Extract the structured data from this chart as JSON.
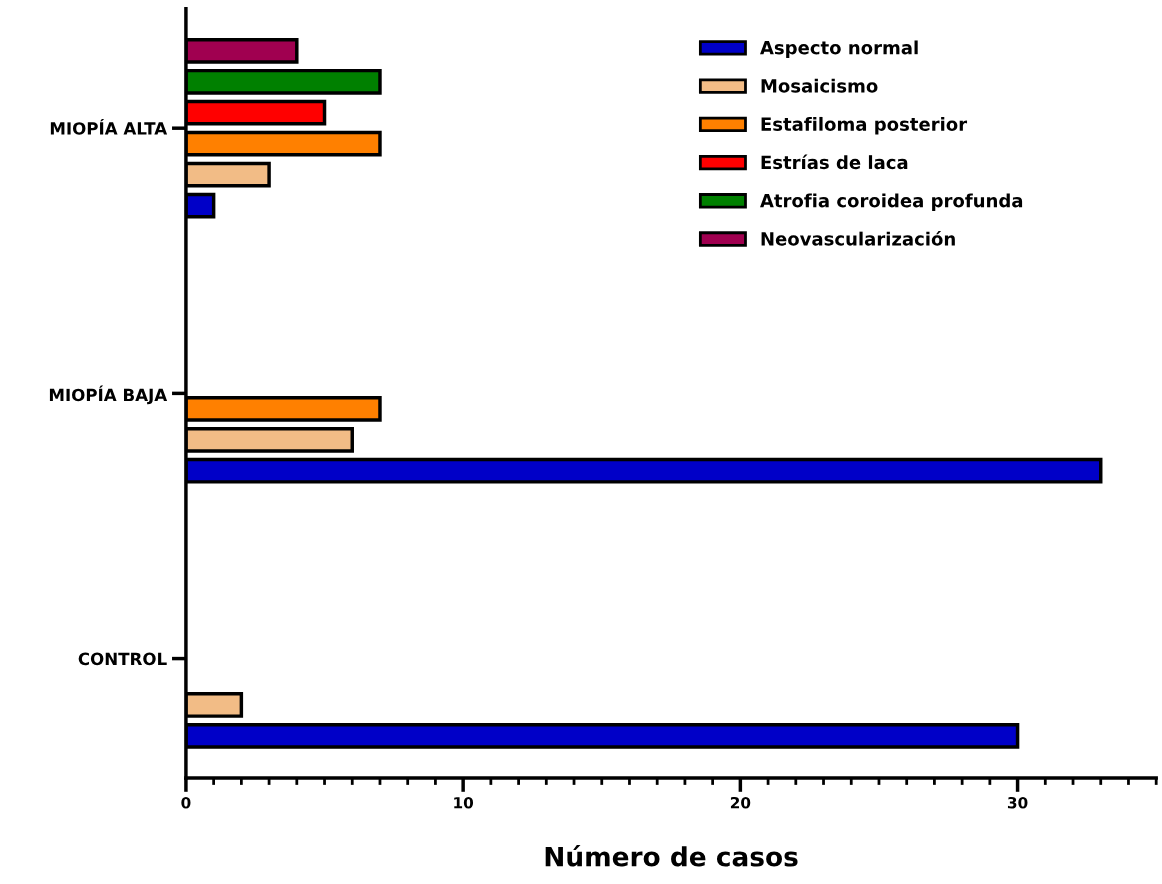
{
  "chart_data": {
    "type": "bar",
    "orientation": "horizontal",
    "xlabel": "Número de casos",
    "categories": [
      "MIOPÍA ALTA",
      "MIOPÍA BAJA",
      "CONTROL"
    ],
    "series": [
      {
        "name": "Aspecto normal",
        "color": "#0000c8",
        "values": [
          1,
          33,
          30
        ]
      },
      {
        "name": "Mosaicismo",
        "color": "#f2bc86",
        "values": [
          3,
          6,
          2
        ]
      },
      {
        "name": "Estafiloma posterior",
        "color": "#ff8000",
        "values": [
          7,
          7,
          null
        ]
      },
      {
        "name": "Estrías de laca",
        "color": "#ff0000",
        "values": [
          5,
          null,
          null
        ]
      },
      {
        "name": "Atrofia coroidea profunda",
        "color": "#008000",
        "values": [
          7,
          null,
          null
        ]
      },
      {
        "name": "Neovascularización",
        "color": "#a00050",
        "values": [
          4,
          null,
          null
        ]
      }
    ],
    "xlim": [
      0,
      35
    ],
    "xticks": [
      0,
      10,
      20,
      30
    ],
    "grid": false,
    "legend": "top right"
  }
}
